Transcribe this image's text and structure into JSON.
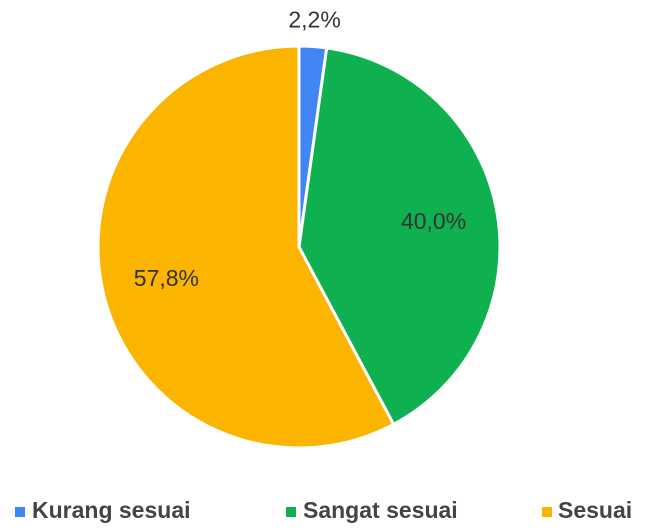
{
  "chart_data": {
    "type": "pie",
    "categories": [
      "Kurang sesuai",
      "Sangat sesuai",
      "Sesuai"
    ],
    "values": [
      2.2,
      40.0,
      57.8
    ],
    "value_labels": [
      "2,2%",
      "40,0%",
      "57,8%"
    ],
    "colors": [
      "#4285f4",
      "#0fb050",
      "#fbb400"
    ],
    "legend": "bottom"
  }
}
